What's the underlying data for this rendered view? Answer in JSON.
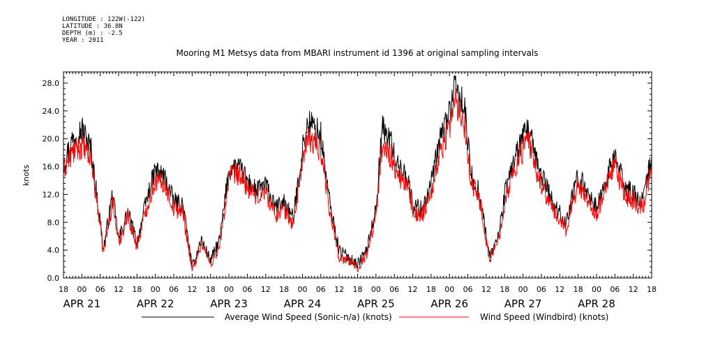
{
  "metadata": {
    "longitude": "LONGITUDE : 122W(-122)",
    "latitude": "LATITUDE : 36.8N",
    "depth": "DEPTH (m) : -2.5",
    "year": "YEAR : 2011"
  },
  "chart_data": {
    "type": "line",
    "title": "Mooring M1 Metsys data from MBARI instrument id 1396 at original sampling intervals",
    "xlabel": "",
    "ylabel": "knots",
    "xlim": [
      "2011-04-20T18:00",
      "2011-04-28T18:00"
    ],
    "ylim": [
      0,
      29.6
    ],
    "y_ticks": [
      "0.0",
      "4.0",
      "8.0",
      "12.0",
      "16.0",
      "20.0",
      "24.0",
      "28.0"
    ],
    "x_hour_ticks": [
      "18",
      "00",
      "06",
      "12",
      "18",
      "00",
      "06",
      "12",
      "18",
      "00",
      "06",
      "12",
      "18",
      "00",
      "06",
      "12",
      "18",
      "00",
      "06",
      "12",
      "18",
      "00",
      "06",
      "12",
      "18",
      "00",
      "06",
      "12",
      "18",
      "00",
      "06",
      "12",
      "18"
    ],
    "x_date_labels": [
      "APR 21",
      "APR 22",
      "APR 23",
      "APR 24",
      "APR 25",
      "APR 26",
      "APR 27",
      "APR 28"
    ],
    "legend_placement": "bottom",
    "series": [
      {
        "name": "Average Wind Speed (Sonic-n/a) (knots)",
        "color": "#000000",
        "x": [
          "2011-04-20T18:00",
          "2011-04-20T21:00",
          "2011-04-21T00:00",
          "2011-04-21T03:00",
          "2011-04-21T06:00",
          "2011-04-21T07:00",
          "2011-04-21T10:00",
          "2011-04-21T12:00",
          "2011-04-21T15:00",
          "2011-04-21T18:00",
          "2011-04-21T21:00",
          "2011-04-22T00:00",
          "2011-04-22T03:00",
          "2011-04-22T06:00",
          "2011-04-22T09:00",
          "2011-04-22T12:00",
          "2011-04-22T15:00",
          "2011-04-22T18:00",
          "2011-04-22T21:00",
          "2011-04-23T00:00",
          "2011-04-23T03:00",
          "2011-04-23T06:00",
          "2011-04-23T09:00",
          "2011-04-23T12:00",
          "2011-04-23T15:00",
          "2011-04-23T18:00",
          "2011-04-23T21:00",
          "2011-04-24T00:00",
          "2011-04-24T02:00",
          "2011-04-24T06:00",
          "2011-04-24T09:00",
          "2011-04-24T12:00",
          "2011-04-24T15:00",
          "2011-04-24T18:00",
          "2011-04-24T21:00",
          "2011-04-25T00:00",
          "2011-04-25T02:00",
          "2011-04-25T05:00",
          "2011-04-25T07:00",
          "2011-04-25T10:00",
          "2011-04-25T12:00",
          "2011-04-25T15:00",
          "2011-04-25T18:00",
          "2011-04-25T21:00",
          "2011-04-26T00:00",
          "2011-04-26T02:00",
          "2011-04-26T05:00",
          "2011-04-26T07:00",
          "2011-04-26T10:00",
          "2011-04-26T13:00",
          "2011-04-26T16:00",
          "2011-04-26T18:00",
          "2011-04-26T21:00",
          "2011-04-27T00:00",
          "2011-04-27T02:00",
          "2011-04-27T04:00",
          "2011-04-27T07:00",
          "2011-04-27T10:00",
          "2011-04-27T14:00",
          "2011-04-27T16:00",
          "2011-04-27T18:00",
          "2011-04-27T21:00",
          "2011-04-28T00:00",
          "2011-04-28T03:00",
          "2011-04-28T06:00",
          "2011-04-28T09:00",
          "2011-04-28T12:00",
          "2011-04-28T15:00",
          "2011-04-28T18:00"
        ],
        "values": [
          16.5,
          20.0,
          21.5,
          18.5,
          8.0,
          4.0,
          12.0,
          5.5,
          9.5,
          5.0,
          11.0,
          15.5,
          14.5,
          11.0,
          10.5,
          1.5,
          5.5,
          2.5,
          5.5,
          15.5,
          16.0,
          14.0,
          12.5,
          13.5,
          10.0,
          11.0,
          8.5,
          18.5,
          22.5,
          20.5,
          10.5,
          4.0,
          3.0,
          2.0,
          4.0,
          10.0,
          21.5,
          19.5,
          16.0,
          15.0,
          10.5,
          10.0,
          13.5,
          20.0,
          24.0,
          27.5,
          24.0,
          15.0,
          12.0,
          3.0,
          6.0,
          12.0,
          17.0,
          20.0,
          21.5,
          17.0,
          14.0,
          10.5,
          8.0,
          11.5,
          14.5,
          12.5,
          10.0,
          14.0,
          17.5,
          13.5,
          12.0,
          11.0,
          17.5
        ]
      },
      {
        "name": "Wind Speed (Windbird) (knots)",
        "color": "#ff0000",
        "x": [
          "2011-04-20T18:00",
          "2011-04-20T21:00",
          "2011-04-21T00:00",
          "2011-04-21T03:00",
          "2011-04-21T06:00",
          "2011-04-21T07:00",
          "2011-04-21T10:00",
          "2011-04-21T12:00",
          "2011-04-21T15:00",
          "2011-04-21T18:00",
          "2011-04-21T21:00",
          "2011-04-22T00:00",
          "2011-04-22T03:00",
          "2011-04-22T06:00",
          "2011-04-22T09:00",
          "2011-04-22T12:00",
          "2011-04-22T15:00",
          "2011-04-22T18:00",
          "2011-04-22T21:00",
          "2011-04-23T00:00",
          "2011-04-23T03:00",
          "2011-04-23T06:00",
          "2011-04-23T09:00",
          "2011-04-23T12:00",
          "2011-04-23T15:00",
          "2011-04-23T18:00",
          "2011-04-23T21:00",
          "2011-04-24T00:00",
          "2011-04-24T02:00",
          "2011-04-24T06:00",
          "2011-04-24T09:00",
          "2011-04-24T12:00",
          "2011-04-24T15:00",
          "2011-04-24T18:00",
          "2011-04-24T21:00",
          "2011-04-25T00:00",
          "2011-04-25T02:00",
          "2011-04-25T05:00",
          "2011-04-25T07:00",
          "2011-04-25T10:00",
          "2011-04-25T12:00",
          "2011-04-25T15:00",
          "2011-04-25T18:00",
          "2011-04-25T21:00",
          "2011-04-26T00:00",
          "2011-04-26T02:00",
          "2011-04-26T05:00",
          "2011-04-26T07:00",
          "2011-04-26T10:00",
          "2011-04-26T13:00",
          "2011-04-26T16:00",
          "2011-04-26T18:00",
          "2011-04-26T21:00",
          "2011-04-27T00:00",
          "2011-04-27T02:00",
          "2011-04-27T04:00",
          "2011-04-27T07:00",
          "2011-04-27T10:00",
          "2011-04-27T14:00",
          "2011-04-27T16:00",
          "2011-04-27T18:00",
          "2011-04-27T21:00",
          "2011-04-28T00:00",
          "2011-04-28T03:00",
          "2011-04-28T06:00",
          "2011-04-28T09:00",
          "2011-04-28T12:00",
          "2011-04-28T15:00",
          "2011-04-28T18:00"
        ],
        "values": [
          15.5,
          18.0,
          19.0,
          17.0,
          7.5,
          3.5,
          11.0,
          5.0,
          9.0,
          4.5,
          10.0,
          14.0,
          13.5,
          10.0,
          9.5,
          1.0,
          5.0,
          2.0,
          4.5,
          14.5,
          15.0,
          13.0,
          11.5,
          12.5,
          9.0,
          10.0,
          7.5,
          17.0,
          20.0,
          18.5,
          9.5,
          3.0,
          2.5,
          1.5,
          3.5,
          9.0,
          19.0,
          17.5,
          14.5,
          13.5,
          9.5,
          9.0,
          12.5,
          18.0,
          22.0,
          25.5,
          22.0,
          14.0,
          11.0,
          2.5,
          5.5,
          11.0,
          15.5,
          18.5,
          19.5,
          15.5,
          12.5,
          9.5,
          7.0,
          10.5,
          13.5,
          11.5,
          9.0,
          13.0,
          16.0,
          12.0,
          11.0,
          10.0,
          16.0
        ]
      }
    ]
  }
}
